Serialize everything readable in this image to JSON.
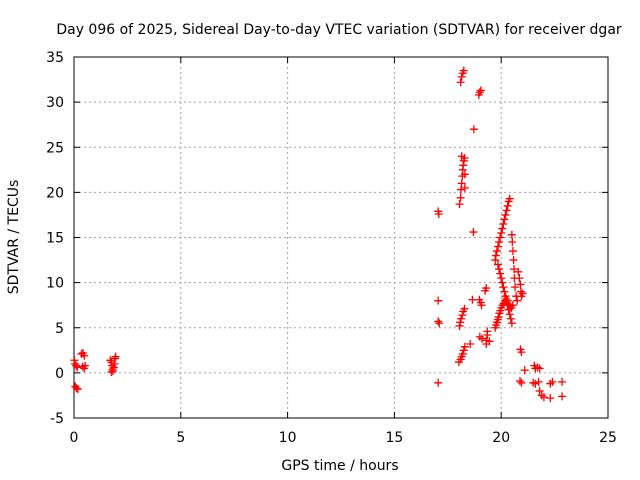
{
  "chart_data": {
    "type": "scatter",
    "title": "Day 096 of 2025, Sidereal Day-to-day VTEC variation (SDTVAR) for receiver dgar",
    "xlabel": "GPS time / hours",
    "ylabel": "SDTVAR / TECUs",
    "xlim": [
      0,
      25
    ],
    "ylim": [
      -5,
      35
    ],
    "xticks": [
      0,
      5,
      10,
      15,
      20,
      25
    ],
    "yticks": [
      -5,
      0,
      5,
      10,
      15,
      20,
      25,
      30,
      35
    ],
    "grid": true,
    "marker": "+",
    "color": "#ff0000",
    "series": [
      {
        "name": "SDTVAR",
        "points": [
          [
            0.02,
            1.4
          ],
          [
            0.05,
            1.0
          ],
          [
            0.1,
            0.8
          ],
          [
            0.15,
            0.6
          ],
          [
            0.06,
            -1.5
          ],
          [
            0.12,
            -1.7
          ],
          [
            0.18,
            -1.8
          ],
          [
            0.35,
            2.1
          ],
          [
            0.42,
            2.2
          ],
          [
            0.48,
            1.9
          ],
          [
            0.4,
            0.7
          ],
          [
            0.48,
            0.5
          ],
          [
            0.52,
            0.8
          ],
          [
            1.7,
            1.4
          ],
          [
            1.75,
            1.2
          ],
          [
            1.78,
            0.8
          ],
          [
            1.8,
            0.4
          ],
          [
            1.82,
            0.2
          ],
          [
            1.86,
            0.6
          ],
          [
            1.9,
            1.0
          ],
          [
            1.92,
            1.6
          ],
          [
            1.95,
            1.8
          ],
          [
            1.75,
            0.1
          ],
          [
            17.05,
            17.9
          ],
          [
            17.08,
            17.6
          ],
          [
            17.05,
            8.0
          ],
          [
            17.05,
            5.7
          ],
          [
            17.1,
            5.5
          ],
          [
            17.05,
            -1.1
          ],
          [
            18.02,
            1.2
          ],
          [
            18.1,
            1.5
          ],
          [
            18.15,
            1.8
          ],
          [
            18.2,
            2.1
          ],
          [
            18.25,
            2.5
          ],
          [
            18.3,
            2.9
          ],
          [
            18.05,
            5.2
          ],
          [
            18.08,
            5.6
          ],
          [
            18.12,
            6.0
          ],
          [
            18.18,
            6.4
          ],
          [
            18.22,
            6.8
          ],
          [
            18.28,
            7.1
          ],
          [
            18.05,
            18.7
          ],
          [
            18.1,
            19.4
          ],
          [
            18.12,
            20.3
          ],
          [
            18.15,
            21.0
          ],
          [
            18.18,
            21.8
          ],
          [
            18.2,
            22.5
          ],
          [
            18.22,
            23.0
          ],
          [
            18.25,
            23.5
          ],
          [
            18.15,
            24.0
          ],
          [
            18.28,
            23.8
          ],
          [
            18.3,
            22.0
          ],
          [
            18.3,
            20.5
          ],
          [
            18.1,
            32.2
          ],
          [
            18.15,
            32.8
          ],
          [
            18.2,
            33.2
          ],
          [
            18.25,
            33.5
          ],
          [
            18.55,
            3.2
          ],
          [
            18.65,
            8.1
          ],
          [
            18.7,
            15.6
          ],
          [
            18.72,
            27.0
          ],
          [
            18.95,
            30.8
          ],
          [
            19.0,
            31.1
          ],
          [
            19.05,
            31.3
          ],
          [
            18.98,
            8.1
          ],
          [
            19.05,
            7.8
          ],
          [
            19.08,
            7.5
          ],
          [
            19.0,
            4.0
          ],
          [
            19.1,
            3.8
          ],
          [
            19.25,
            9.1
          ],
          [
            19.3,
            9.4
          ],
          [
            19.3,
            3.2
          ],
          [
            19.3,
            3.6
          ],
          [
            19.35,
            4.2
          ],
          [
            19.35,
            4.6
          ],
          [
            19.45,
            3.5
          ],
          [
            19.72,
            5.0
          ],
          [
            19.76,
            5.3
          ],
          [
            19.8,
            5.6
          ],
          [
            19.84,
            5.9
          ],
          [
            19.88,
            6.2
          ],
          [
            19.92,
            6.6
          ],
          [
            19.96,
            6.9
          ],
          [
            20.0,
            7.2
          ],
          [
            20.06,
            7.5
          ],
          [
            20.12,
            7.7
          ],
          [
            20.18,
            8.0
          ],
          [
            20.24,
            8.2
          ],
          [
            20.3,
            8.0
          ],
          [
            20.36,
            7.6
          ],
          [
            20.42,
            7.4
          ],
          [
            20.48,
            7.2
          ],
          [
            20.54,
            7.5
          ],
          [
            19.72,
            12.5
          ],
          [
            19.75,
            13.0
          ],
          [
            19.8,
            13.5
          ],
          [
            19.85,
            14.0
          ],
          [
            19.9,
            14.5
          ],
          [
            19.95,
            15.0
          ],
          [
            20.0,
            15.5
          ],
          [
            20.05,
            16.0
          ],
          [
            20.1,
            16.5
          ],
          [
            20.15,
            17.0
          ],
          [
            20.2,
            17.5
          ],
          [
            20.25,
            18.0
          ],
          [
            20.3,
            18.5
          ],
          [
            20.35,
            19.0
          ],
          [
            20.4,
            19.3
          ],
          [
            19.85,
            12.0
          ],
          [
            19.9,
            11.5
          ],
          [
            19.95,
            11.0
          ],
          [
            20.0,
            10.5
          ],
          [
            20.05,
            10.0
          ],
          [
            20.1,
            9.5
          ],
          [
            20.15,
            9.0
          ],
          [
            20.2,
            8.5
          ],
          [
            20.3,
            7.5
          ],
          [
            20.35,
            7.0
          ],
          [
            20.4,
            6.5
          ],
          [
            20.45,
            6.0
          ],
          [
            20.5,
            5.5
          ],
          [
            20.5,
            15.3
          ],
          [
            20.52,
            14.5
          ],
          [
            20.55,
            13.5
          ],
          [
            20.58,
            12.5
          ],
          [
            20.6,
            11.5
          ],
          [
            20.62,
            10.5
          ],
          [
            20.65,
            9.5
          ],
          [
            20.7,
            8.5
          ],
          [
            20.75,
            8.0
          ],
          [
            20.8,
            11.2
          ],
          [
            20.85,
            10.5
          ],
          [
            20.9,
            9.8
          ],
          [
            20.92,
            9.0
          ],
          [
            20.95,
            8.5
          ],
          [
            21.0,
            8.8
          ],
          [
            20.9,
            2.6
          ],
          [
            20.95,
            2.3
          ],
          [
            20.88,
            -0.9
          ],
          [
            20.95,
            -1.1
          ],
          [
            21.1,
            0.3
          ],
          [
            21.55,
            0.8
          ],
          [
            21.6,
            0.5
          ],
          [
            21.7,
            0.6
          ],
          [
            21.8,
            0.5
          ],
          [
            21.5,
            -1.1
          ],
          [
            21.6,
            -1.2
          ],
          [
            21.75,
            -1.0
          ],
          [
            21.8,
            -2.0
          ],
          [
            21.9,
            -2.5
          ],
          [
            22.0,
            -2.7
          ],
          [
            22.3,
            -2.8
          ],
          [
            22.3,
            -1.2
          ],
          [
            22.4,
            -1.0
          ],
          [
            22.85,
            -1.0
          ],
          [
            22.85,
            -2.6
          ]
        ]
      }
    ]
  }
}
